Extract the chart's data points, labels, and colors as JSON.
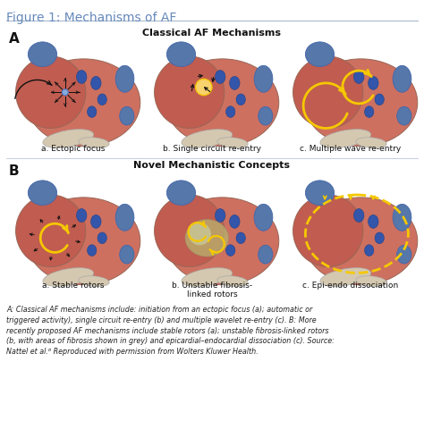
{
  "title": "Figure 1: Mechanisms of AF",
  "title_color": "#6688bb",
  "bg_color": "#ffffff",
  "figsize": [
    4.74,
    4.81
  ],
  "dpi": 100,
  "section_A_label": "A",
  "section_B_label": "B",
  "row_A_title": "Classical AF Mechanisms",
  "row_B_title": "Novel Mechanistic Concepts",
  "col_labels_A": [
    "a. Ectopic focus",
    "b. Single circuit re-entry",
    "c. Multiple wave re-entry"
  ],
  "col_labels_B": [
    "a. Stable rotors",
    "b. Unstable fibrosis-\nlinked rotors",
    "c. Epi-endo dissociation"
  ],
  "caption": "A: Classical AF mechanisms include: initiation from an ectopic focus (a); automatic or\ntriggered activity), single circuit re-entry (b) and multiple wavelet re-entry (c). B: More\nrecently proposed AF mechanisms include stable rotors (a); unstable fibrosis-linked rotors\n(b, with areas of fibrosis shown in grey) and epicardial–endocardial dissociation (c). Source:\nNattel et al.⁶ Reproduced with permission from Wolters Kluwer Health.",
  "heart_main": "#cd7060",
  "heart_la": "#c05c50",
  "heart_lv": "#be6055",
  "blue_struct": "#5577aa",
  "blue_dark": "#4466aa",
  "vessel_color": "#d4c8b0",
  "spot_color": "#3355aa",
  "arrow_color": "#111111",
  "yellow_color": "#f5c800",
  "yellow_light": "#ffe070",
  "gray_fib": "#b8b890",
  "separator_color": "#aabbcc",
  "label_color": "#111111",
  "caption_color": "#222222"
}
